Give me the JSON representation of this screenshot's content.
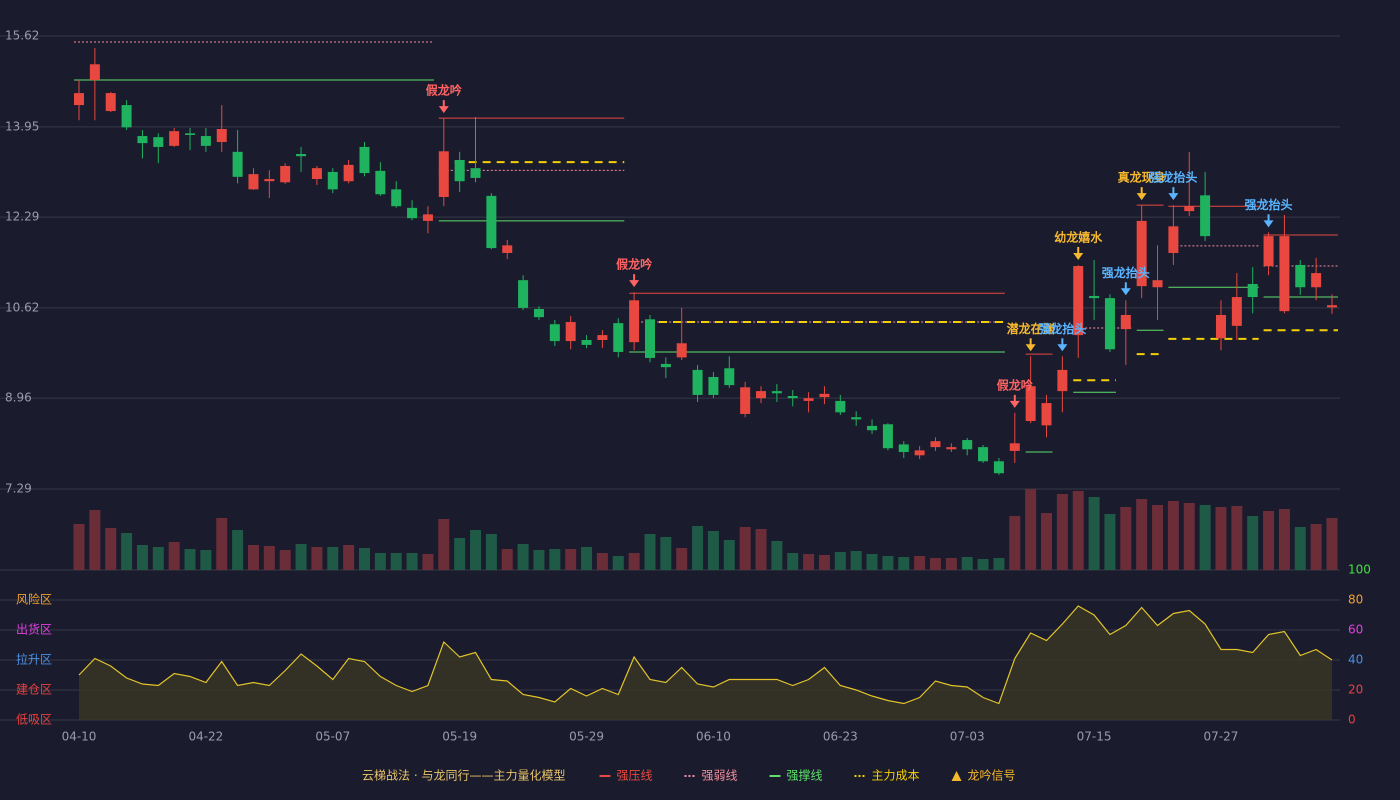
{
  "chart_data": {
    "type": "candlestick",
    "categories": [
      "04-10",
      null,
      null,
      null,
      null,
      null,
      null,
      null,
      "04-22",
      null,
      null,
      null,
      null,
      null,
      null,
      null,
      "05-07",
      null,
      null,
      null,
      null,
      null,
      null,
      null,
      "05-19",
      null,
      null,
      null,
      null,
      null,
      null,
      null,
      "05-29",
      null,
      null,
      null,
      null,
      null,
      null,
      null,
      "06-10",
      null,
      null,
      null,
      null,
      null,
      null,
      null,
      "06-23",
      null,
      null,
      null,
      null,
      null,
      null,
      null,
      "07-03",
      null,
      null,
      null,
      null,
      null,
      null,
      null,
      "07-15",
      null,
      null,
      null,
      null,
      null,
      null,
      null,
      "07-27",
      null,
      null,
      null,
      null,
      null,
      null,
      null
    ],
    "ohlc": [
      [
        14.35,
        14.81,
        14.07,
        14.57
      ],
      [
        14.81,
        15.4,
        14.07,
        15.1
      ],
      [
        14.24,
        14.59,
        14.22,
        14.57
      ],
      [
        14.35,
        14.44,
        13.89,
        13.94
      ],
      [
        13.78,
        13.89,
        13.37,
        13.65
      ],
      [
        13.76,
        13.83,
        13.28,
        13.58
      ],
      [
        13.6,
        13.93,
        13.58,
        13.87
      ],
      [
        13.83,
        13.93,
        13.52,
        13.8
      ],
      [
        13.78,
        13.93,
        13.49,
        13.6
      ],
      [
        13.67,
        14.35,
        13.49,
        13.91
      ],
      [
        13.49,
        13.89,
        12.91,
        13.03
      ],
      [
        12.8,
        13.19,
        12.79,
        13.08
      ],
      [
        12.95,
        13.15,
        12.64,
        12.99
      ],
      [
        12.93,
        13.28,
        12.9,
        13.23
      ],
      [
        13.45,
        13.58,
        13.12,
        13.41
      ],
      [
        12.99,
        13.23,
        12.88,
        13.19
      ],
      [
        13.12,
        13.19,
        12.73,
        12.8
      ],
      [
        12.95,
        13.34,
        12.91,
        13.25
      ],
      [
        13.58,
        13.67,
        13.04,
        13.1
      ],
      [
        13.14,
        13.3,
        12.68,
        12.71
      ],
      [
        12.8,
        12.95,
        12.46,
        12.49
      ],
      [
        12.46,
        12.6,
        12.23,
        12.27
      ],
      [
        12.22,
        12.49,
        11.99,
        12.34
      ],
      [
        12.66,
        14.11,
        12.49,
        13.5
      ],
      [
        13.34,
        13.49,
        12.75,
        12.95
      ],
      [
        13.19,
        14.13,
        12.93,
        13.01
      ],
      [
        12.68,
        12.73,
        11.7,
        11.72
      ],
      [
        11.63,
        11.87,
        11.52,
        11.77
      ],
      [
        11.13,
        11.22,
        10.58,
        10.62
      ],
      [
        10.6,
        10.65,
        10.4,
        10.45
      ],
      [
        10.32,
        10.4,
        9.92,
        10.01
      ],
      [
        10.01,
        10.47,
        9.86,
        10.36
      ],
      [
        10.03,
        10.12,
        9.88,
        9.94
      ],
      [
        10.03,
        10.21,
        9.88,
        10.12
      ],
      [
        10.34,
        10.43,
        9.71,
        9.81
      ],
      [
        9.99,
        10.91,
        9.84,
        10.76
      ],
      [
        10.41,
        10.49,
        9.62,
        9.7
      ],
      [
        9.59,
        9.71,
        9.33,
        9.53
      ],
      [
        9.71,
        10.62,
        9.66,
        9.97
      ],
      [
        9.48,
        9.57,
        8.89,
        9.02
      ],
      [
        9.35,
        9.44,
        8.96,
        9.02
      ],
      [
        9.51,
        9.73,
        9.15,
        9.2
      ],
      [
        8.67,
        9.26,
        8.61,
        9.16
      ],
      [
        8.96,
        9.18,
        8.87,
        9.09
      ],
      [
        9.09,
        9.22,
        8.89,
        9.05
      ],
      [
        9.0,
        9.11,
        8.81,
        8.96
      ],
      [
        8.91,
        9.07,
        8.7,
        8.96
      ],
      [
        8.98,
        9.18,
        8.85,
        9.04
      ],
      [
        8.91,
        9.02,
        8.65,
        8.7
      ],
      [
        8.61,
        8.72,
        8.45,
        8.57
      ],
      [
        8.45,
        8.57,
        8.3,
        8.37
      ],
      [
        8.48,
        8.5,
        8.0,
        8.04
      ],
      [
        8.11,
        8.17,
        7.86,
        7.97
      ],
      [
        7.91,
        8.08,
        7.84,
        8.0
      ],
      [
        8.06,
        8.24,
        7.99,
        8.17
      ],
      [
        8.02,
        8.13,
        7.97,
        8.06
      ],
      [
        8.19,
        8.23,
        7.91,
        8.02
      ],
      [
        8.06,
        8.1,
        7.77,
        7.8
      ],
      [
        7.8,
        7.86,
        7.55,
        7.58
      ],
      [
        7.99,
        8.69,
        7.77,
        8.13
      ],
      [
        8.54,
        9.73,
        8.5,
        9.18
      ],
      [
        8.46,
        9.02,
        8.24,
        8.87
      ],
      [
        9.09,
        9.73,
        8.7,
        9.48
      ],
      [
        10.12,
        11.41,
        9.7,
        11.39
      ],
      [
        10.84,
        11.5,
        10.4,
        10.8
      ],
      [
        10.8,
        10.87,
        9.81,
        9.86
      ],
      [
        10.23,
        10.76,
        9.57,
        10.49
      ],
      [
        11.02,
        12.51,
        10.8,
        12.22
      ],
      [
        11.0,
        11.77,
        10.4,
        11.13
      ],
      [
        11.63,
        12.51,
        11.41,
        12.12
      ],
      [
        12.4,
        13.49,
        12.31,
        12.49
      ],
      [
        12.69,
        13.12,
        11.85,
        11.94
      ],
      [
        10.06,
        10.76,
        9.84,
        10.49
      ],
      [
        10.29,
        11.26,
        10.03,
        10.82
      ],
      [
        11.06,
        11.37,
        10.52,
        10.82
      ],
      [
        11.39,
        12.01,
        11.22,
        11.94
      ],
      [
        10.56,
        12.33,
        10.52,
        11.94
      ],
      [
        11.41,
        11.5,
        10.86,
        11.0
      ],
      [
        11.0,
        11.54,
        10.76,
        11.26
      ],
      [
        10.63,
        10.87,
        10.51,
        10.67
      ]
    ],
    "up_color": "#e8483f",
    "down_color": "#20b35f",
    "ylim": [
      7.29,
      15.62
    ],
    "yticks": [
      15.62,
      13.95,
      12.29,
      10.62,
      8.96,
      7.29
    ],
    "grid": true,
    "volume": {
      "values": [
        46,
        60,
        42,
        37,
        25,
        23,
        28,
        21,
        20,
        52,
        40,
        25,
        24,
        20,
        26,
        23,
        23,
        25,
        22,
        17,
        17,
        17,
        16,
        51,
        32,
        40,
        36,
        21,
        26,
        20,
        21,
        21,
        23,
        17,
        14,
        17,
        36,
        33,
        22,
        44,
        39,
        30,
        43,
        41,
        29,
        17,
        16,
        15,
        18,
        19,
        16,
        14,
        13,
        14,
        12,
        12,
        13,
        11,
        12,
        54,
        81,
        57,
        76,
        79,
        73,
        56,
        63,
        71,
        65,
        69,
        67,
        65,
        63,
        64,
        54,
        59,
        61,
        43,
        46,
        52
      ],
      "up_color": "#6b2d38",
      "down_color": "#1f5a46"
    },
    "oscillator": {
      "color": "#e2c42a",
      "fill": "#3a3626",
      "values": [
        30,
        41,
        36,
        28,
        24,
        23,
        31,
        29,
        25,
        39,
        23,
        25,
        23,
        33,
        44,
        36,
        27,
        41,
        39,
        29,
        23,
        19,
        23,
        52,
        42,
        45,
        27,
        26,
        17,
        15,
        12,
        21,
        16,
        21,
        17,
        42,
        27,
        25,
        35,
        24,
        22,
        27,
        27,
        27,
        27,
        23,
        27,
        35,
        23,
        20,
        16,
        13,
        11,
        15,
        26,
        23,
        22,
        15,
        11,
        41,
        58,
        53,
        64,
        76,
        70,
        57,
        63,
        75,
        63,
        71,
        73,
        64,
        47,
        47,
        45,
        57,
        59,
        43,
        47,
        40
      ],
      "ylim": [
        0,
        100
      ],
      "yticks": [
        0,
        20,
        40,
        60,
        80,
        100
      ],
      "ytick_colors": [
        "#e84040",
        "#e84040",
        "#4a90e2",
        "#e040e0",
        "#f0a030",
        "#40e040"
      ],
      "zones": [
        {
          "label": "风险区",
          "value": 80,
          "color": "#f0a030"
        },
        {
          "label": "出货区",
          "value": 60,
          "color": "#e040e0"
        },
        {
          "label": "拉升区",
          "value": 40,
          "color": "#4a90e2"
        },
        {
          "label": "建仓区",
          "value": 20,
          "color": "#e84040"
        },
        {
          "label": "低吸区",
          "value": 0,
          "color": "#e84040"
        }
      ]
    },
    "levels": [
      {
        "name": "强压线",
        "color": "#e8483f",
        "dash": null,
        "segments": [
          {
            "from": 23,
            "to": 34,
            "value": 14.11
          },
          {
            "from": 35,
            "to": 58,
            "value": 10.89
          },
          {
            "from": 60,
            "to": 61,
            "value": 9.77
          },
          {
            "from": 67,
            "to": 68,
            "value": 12.51
          },
          {
            "from": 69,
            "to": 74,
            "value": 12.49
          },
          {
            "from": 75,
            "to": 79,
            "value": 11.96
          }
        ]
      },
      {
        "name": "强弱线",
        "color": "#f48fa0",
        "dash": "2,2",
        "segments": [
          {
            "from": 0,
            "to": 22,
            "value": 15.51
          },
          {
            "from": 23,
            "to": 34,
            "value": 13.15
          },
          {
            "from": 35,
            "to": 58,
            "value": 10.36
          },
          {
            "from": 63,
            "to": 66,
            "value": 10.25
          },
          {
            "from": 69,
            "to": 74,
            "value": 11.76
          },
          {
            "from": 75,
            "to": 79,
            "value": 11.39
          }
        ]
      },
      {
        "name": "强撑线",
        "color": "#5ee06a",
        "dash": null,
        "segments": [
          {
            "from": 0,
            "to": 22,
            "value": 14.81
          },
          {
            "from": 23,
            "to": 34,
            "value": 12.22
          },
          {
            "from": 35,
            "to": 58,
            "value": 9.81
          },
          {
            "from": 60,
            "to": 61,
            "value": 7.97
          },
          {
            "from": 63,
            "to": 65,
            "value": 9.07
          },
          {
            "from": 67,
            "to": 68,
            "value": 10.21
          },
          {
            "from": 69,
            "to": 74,
            "value": 11.0
          },
          {
            "from": 75,
            "to": 79,
            "value": 10.82
          }
        ]
      },
      {
        "name": "主力成本",
        "color": "#f5d000",
        "dash": "8,6",
        "segments": [
          {
            "from": 24,
            "to": 34,
            "value": 13.3
          },
          {
            "from": 36,
            "to": 58,
            "value": 10.36
          },
          {
            "from": 63,
            "to": 65,
            "value": 9.29
          },
          {
            "from": 67,
            "to": 68,
            "value": 9.77
          },
          {
            "from": 69,
            "to": 74,
            "value": 10.05
          },
          {
            "from": 75,
            "to": 79,
            "value": 10.21
          }
        ]
      }
    ],
    "signals": [
      {
        "label": "假龙吟",
        "index": 23,
        "color": "#ff6464"
      },
      {
        "label": "假龙吟",
        "index": 35,
        "color": "#ff6464"
      },
      {
        "label": "假龙吟",
        "index": 59,
        "color": "#ff6464"
      },
      {
        "label": "潜龙在渊",
        "index": 60,
        "color": "#f5b82e"
      },
      {
        "label": "强龙抬头",
        "index": 62,
        "color": "#5ab4ff"
      },
      {
        "label": "幼龙嬉水",
        "index": 63,
        "color": "#f5b82e"
      },
      {
        "label": "强龙抬头",
        "index": 66,
        "color": "#5ab4ff"
      },
      {
        "label": "真龙现身",
        "index": 67,
        "color": "#f5b82e"
      },
      {
        "label": "强龙抬头",
        "index": 69,
        "color": "#5ab4ff"
      },
      {
        "label": "强龙抬头",
        "index": 75,
        "color": "#5ab4ff"
      }
    ],
    "legend_title": "云梯战法 · 与龙同行——主力量化模型",
    "legend_title_color": "#e8c36a",
    "signal_legend": {
      "name": "龙吟信号",
      "color": "#f5b82e"
    }
  }
}
